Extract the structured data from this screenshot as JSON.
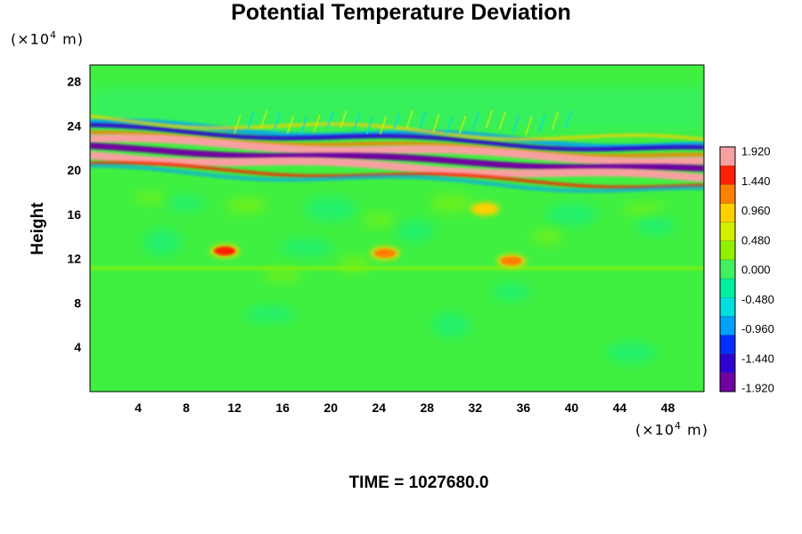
{
  "chart_data": {
    "type": "heatmap",
    "title": "Potential Temperature Deviation",
    "ylabel": "Height",
    "x_unit": [
      "(×10",
      "4",
      " m)"
    ],
    "y_unit": [
      "(×10",
      "4",
      " m)"
    ],
    "x_ticks": [
      4,
      8,
      12,
      16,
      20,
      24,
      28,
      32,
      36,
      40,
      44,
      48
    ],
    "y_ticks": [
      4,
      8,
      12,
      16,
      20,
      24,
      28
    ],
    "xlim": [
      0,
      51
    ],
    "ylim": [
      0,
      29.5
    ],
    "colorbar": {
      "labels": [
        "1.920",
        "1.440",
        "0.960",
        "0.480",
        "0.000",
        "-0.480",
        "-0.960",
        "-1.440",
        "-1.920"
      ],
      "range": [
        -2.16,
        2.16
      ],
      "colors": [
        "#7000a0",
        "#3000d0",
        "#0030ff",
        "#00a0ff",
        "#00e0e0",
        "#00f0a0",
        "#40f060",
        "#90f000",
        "#d0f000",
        "#ffd000",
        "#ff8000",
        "#ff2000",
        "#f8a0a0"
      ]
    },
    "background_color": "#40f040",
    "features": [
      {
        "name": "upper-layer",
        "y_range": [
          18.5,
          23.5
        ],
        "value": "mixed"
      },
      {
        "name": "warm-anomaly-1",
        "x": 11.2,
        "y": 12.7,
        "value": 1.7
      },
      {
        "name": "warm-anomaly-2",
        "x": 24.5,
        "y": 12.5,
        "value": 1.4
      },
      {
        "name": "warm-anomaly-3",
        "x": 32.8,
        "y": 16.5,
        "value": 1.0
      },
      {
        "name": "warm-anomaly-4",
        "x": 35.0,
        "y": 11.8,
        "value": 1.2
      }
    ]
  },
  "footer": {
    "time_label": "TIME = ",
    "time_value": "1027680.0"
  }
}
